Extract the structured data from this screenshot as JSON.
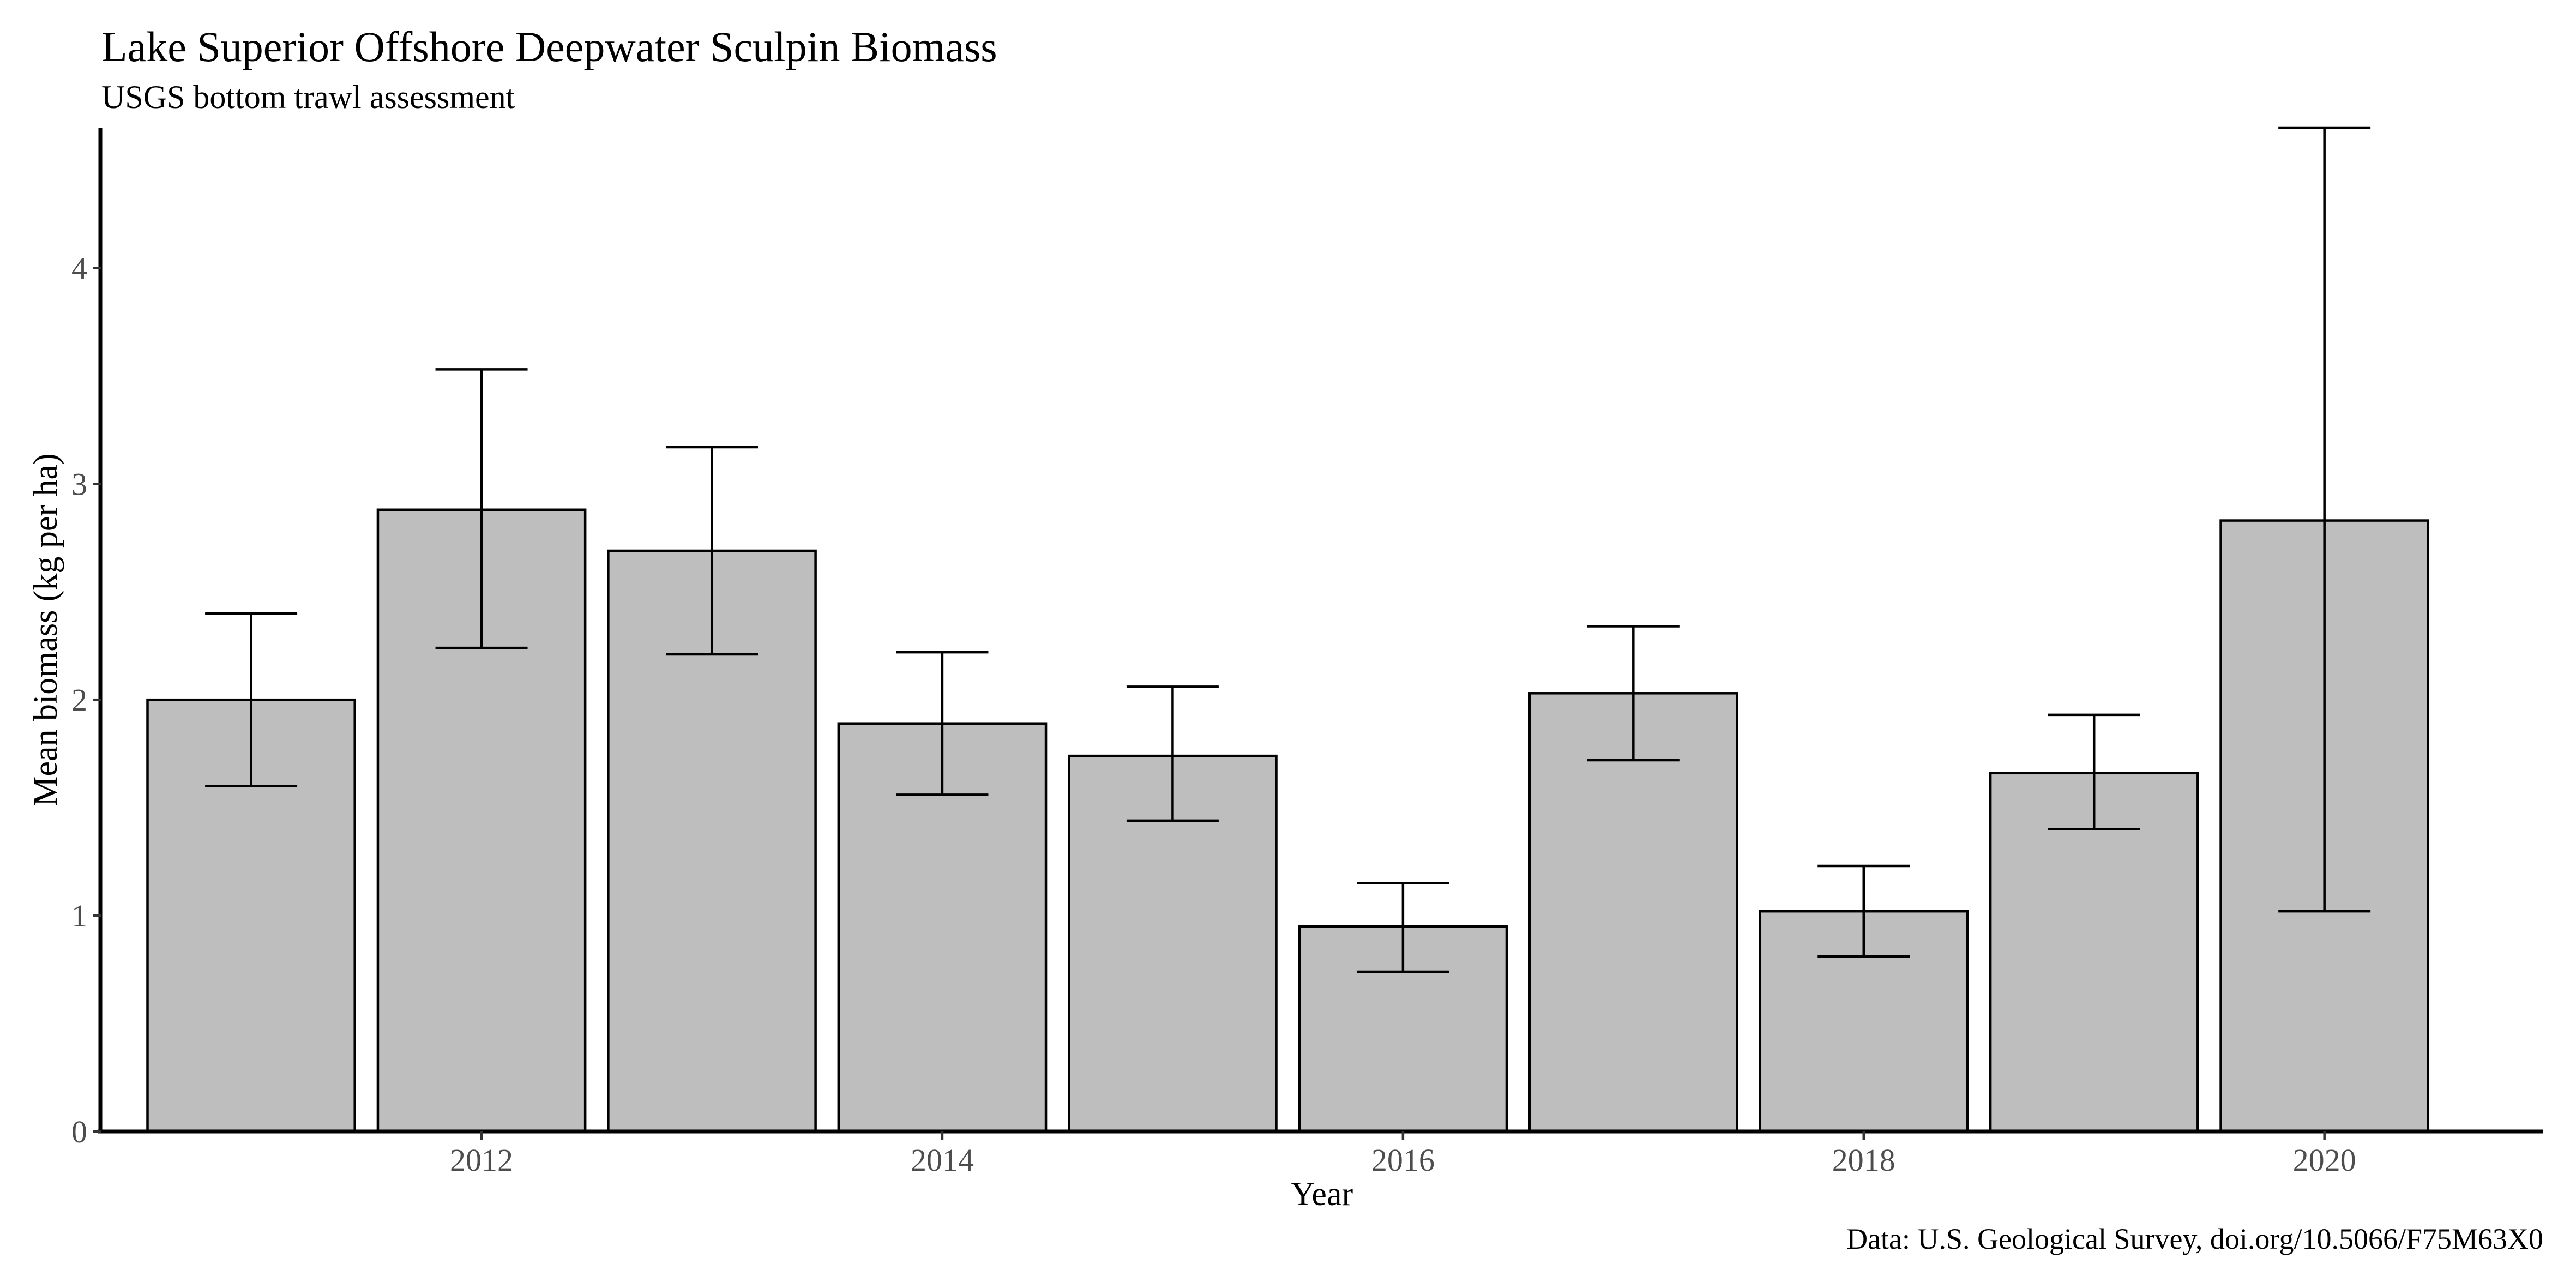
{
  "chart_data": {
    "type": "bar",
    "title": "Lake Superior Offshore Deepwater Sculpin Biomass",
    "subtitle": "USGS bottom trawl assessment",
    "xlabel": "Year",
    "ylabel": "Mean biomass (kg per ha)",
    "caption": "Data: U.S. Geological Survey, doi.org/10.5066/F75M63X0",
    "categories": [
      2011,
      2012,
      2013,
      2014,
      2015,
      2016,
      2017,
      2018,
      2019,
      2020
    ],
    "values": [
      2.0,
      2.88,
      2.69,
      1.89,
      1.74,
      0.95,
      2.03,
      1.02,
      1.66,
      2.83
    ],
    "error_low": [
      1.6,
      2.24,
      2.21,
      1.56,
      1.44,
      0.74,
      1.72,
      0.81,
      1.4,
      1.02
    ],
    "error_high": [
      2.4,
      3.53,
      3.17,
      2.22,
      2.06,
      1.15,
      2.34,
      1.23,
      1.93,
      4.65
    ],
    "x_ticks": [
      "2012",
      "2014",
      "2016",
      "2018",
      "2020"
    ],
    "y_ticks": [
      "0",
      "1",
      "2",
      "3",
      "4"
    ],
    "ylim": [
      0,
      4.65
    ],
    "xlim": [
      2010.35,
      2020.95
    ],
    "grid": false,
    "legend": "none",
    "bar_fill": "#bebebe",
    "bar_outline": "#000000"
  }
}
